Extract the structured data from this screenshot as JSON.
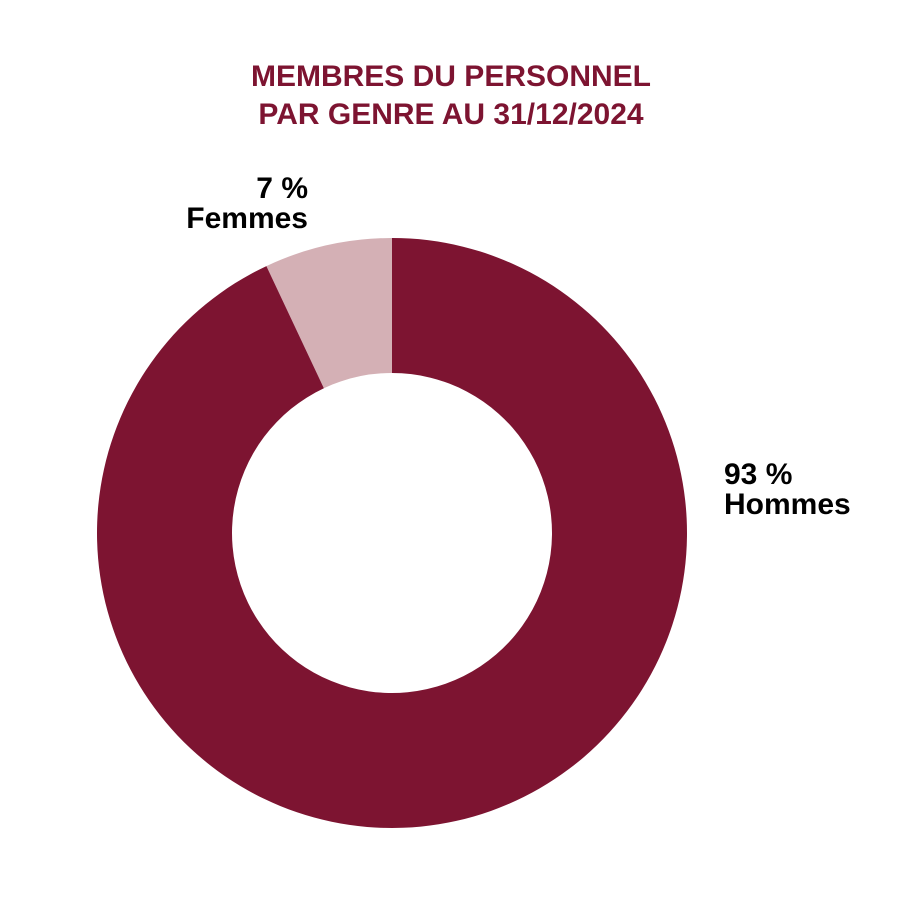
{
  "chart_data": {
    "type": "pie",
    "style": "donut",
    "title": [
      "MEMBRES DU PERSONNEL",
      "PAR GENRE AU 31/12/2024"
    ],
    "series": [
      {
        "name": "Femmes",
        "value": 7,
        "value_label": "7 %",
        "color": "#d4b0b5"
      },
      {
        "name": "Hommes",
        "value": 93,
        "value_label": "93 %",
        "color": "#7d1431"
      }
    ],
    "start_angle_deg": 0,
    "direction": "counterclockwise",
    "legend": "none"
  },
  "colors": {
    "title": "#7d1431",
    "label": "#000000",
    "background": "#ffffff"
  }
}
